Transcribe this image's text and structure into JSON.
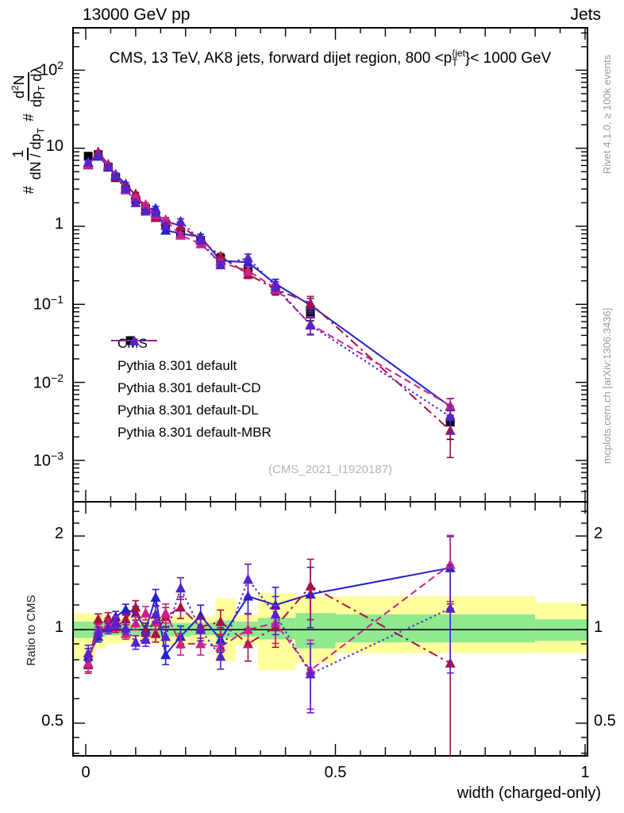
{
  "header": {
    "left": "13000 GeV pp",
    "right": "Jets"
  },
  "title": {
    "pre": "CMS, 13 TeV, AK8 jets, forward dijet region, 800 <p",
    "sup": "{jet",
    "sub": "T",
    "post": "}< 1000 GeV"
  },
  "ylabel": {
    "hash1": "#",
    "f1num": "1",
    "f1den": "dN / dp",
    "f1densub": "T",
    "hash2": "#",
    "f2numd": "d",
    "f2numsup": "2",
    "f2numN": "N",
    "f2den": "dp",
    "f2densub": "T",
    "f2dentail": " dλ"
  },
  "xlabel": "width (charged-only)",
  "ratio_label": "Ratio to CMS",
  "watermark": "(CMS_2021_I1920187)",
  "side_notes": {
    "top": "Rivet 4.1.0, ≥ 100k events",
    "bottom": "mcplots.cern.ch [arXiv:1306.3436]"
  },
  "legend": [
    {
      "label": "CMS",
      "color": "#000000",
      "style": "none",
      "marker": "square"
    },
    {
      "label": "Pythia 8.301 default",
      "color": "#2222cc",
      "style": "solid",
      "marker": "triangle"
    },
    {
      "label": "Pythia 8.301 default-CD",
      "color": "#aa1144",
      "style": "dashdot",
      "marker": "triangle"
    },
    {
      "label": "Pythia 8.301 default-DL",
      "color": "#cc2288",
      "style": "dashed",
      "marker": "triangle"
    },
    {
      "label": "Pythia 8.301 default-MBR",
      "color": "#5522cc",
      "style": "dotted",
      "marker": "triangle"
    }
  ],
  "colors": {
    "band_outer": "#ffff9c",
    "band_inner": "#8fe98f",
    "axis": "#000000"
  },
  "chart_data": {
    "type": "line",
    "title": "CMS, 13 TeV, AK8 jets, forward dijet region, 800 < pT{jet} < 1000 GeV",
    "xlabel": "width (charged-only)",
    "ylabel": "# 1/(dN/dpT) # d2N/(dpT dlambda)",
    "ratio_ylabel": "Ratio to CMS",
    "x_range": [
      0,
      1
    ],
    "y_range_main": [
      0.001,
      300
    ],
    "y_scale": "log",
    "y_range_ratio": [
      0.39,
      2.58
    ],
    "grid": false,
    "legend_position": "inside-left-middle",
    "x": [
      0.005,
      0.025,
      0.045,
      0.06,
      0.08,
      0.1,
      0.12,
      0.14,
      0.16,
      0.19,
      0.23,
      0.27,
      0.325,
      0.38,
      0.45,
      0.73
    ],
    "cms": {
      "name": "CMS",
      "color": "#000000",
      "marker": "square",
      "y": [
        7.9,
        8.3,
        5.7,
        4.2,
        3.0,
        2.2,
        1.68,
        1.33,
        1.07,
        0.85,
        0.66,
        0.39,
        0.27,
        0.153,
        0.075,
        0.0031
      ],
      "rel_err": [
        0.1,
        0.06,
        0.05,
        0.05,
        0.05,
        0.05,
        0.05,
        0.06,
        0.06,
        0.07,
        0.08,
        0.1,
        0.12,
        0.14,
        0.18,
        0.4
      ]
    },
    "series": [
      {
        "name": "Pythia 8.301 default",
        "color": "#2222cc",
        "style": "solid",
        "ratio": [
          0.82,
          0.95,
          1.03,
          1.1,
          1.16,
          1.13,
          1.0,
          1.27,
          0.83,
          0.95,
          1.11,
          0.93,
          1.28,
          1.2,
          1.3,
          1.58
        ],
        "rel_err": [
          0.06,
          0.04,
          0.04,
          0.04,
          0.04,
          0.05,
          0.05,
          0.06,
          0.07,
          0.08,
          0.08,
          0.09,
          0.12,
          0.14,
          0.22,
          0.26
        ]
      },
      {
        "name": "Pythia 8.301 default-CD",
        "color": "#aa1144",
        "style": "dashdot",
        "ratio": [
          0.77,
          1.08,
          1.09,
          1.02,
          1.08,
          1.18,
          0.98,
          0.97,
          1.1,
          1.18,
          1.02,
          1.06,
          0.9,
          1.02,
          1.38,
          0.78
        ],
        "rel_err": [
          0.06,
          0.04,
          0.04,
          0.04,
          0.04,
          0.05,
          0.05,
          0.06,
          0.07,
          0.08,
          0.08,
          0.09,
          0.12,
          0.14,
          0.22,
          0.55
        ]
      },
      {
        "name": "Pythia 8.301 default-DL",
        "color": "#cc2288",
        "style": "dashed",
        "ratio": [
          0.78,
          1.0,
          1.04,
          1.06,
          0.97,
          1.05,
          1.13,
          1.06,
          1.13,
          0.9,
          0.9,
          0.88,
          1.0,
          1.05,
          0.74,
          1.62
        ],
        "rel_err": [
          0.06,
          0.04,
          0.04,
          0.04,
          0.04,
          0.05,
          0.05,
          0.06,
          0.07,
          0.08,
          0.08,
          0.09,
          0.12,
          0.14,
          0.25,
          0.24
        ]
      },
      {
        "name": "Pythia 8.301 default-MBR",
        "color": "#5522cc",
        "style": "dotted",
        "ratio": [
          0.84,
          0.98,
          1.01,
          1.05,
          1.01,
          0.91,
          0.93,
          1.12,
          0.95,
          1.36,
          1.0,
          0.82,
          1.45,
          1.12,
          0.72,
          1.17
        ],
        "rel_err": [
          0.06,
          0.04,
          0.04,
          0.04,
          0.04,
          0.05,
          0.05,
          0.06,
          0.07,
          0.08,
          0.08,
          0.09,
          0.12,
          0.14,
          0.25,
          0.38
        ]
      }
    ],
    "ratio_bands": [
      {
        "x0": -0.025,
        "x1": 0.02,
        "yellow": [
          0.8,
          1.13
        ],
        "green": [
          0.94,
          1.06
        ]
      },
      {
        "x0": 0.02,
        "x1": 0.04,
        "yellow": [
          0.87,
          1.13
        ],
        "green": [
          0.95,
          1.06
        ]
      },
      {
        "x0": 0.04,
        "x1": 0.07,
        "yellow": [
          0.9,
          1.1
        ],
        "green": [
          0.96,
          1.05
        ]
      },
      {
        "x0": 0.07,
        "x1": 0.13,
        "yellow": [
          0.91,
          1.09
        ],
        "green": [
          0.96,
          1.04
        ]
      },
      {
        "x0": 0.13,
        "x1": 0.17,
        "yellow": [
          0.9,
          1.11
        ],
        "green": [
          0.95,
          1.05
        ]
      },
      {
        "x0": 0.17,
        "x1": 0.21,
        "yellow": [
          0.89,
          1.11
        ],
        "green": [
          0.95,
          1.05
        ]
      },
      {
        "x0": 0.21,
        "x1": 0.26,
        "yellow": [
          0.9,
          1.1
        ],
        "green": [
          0.96,
          1.05
        ]
      },
      {
        "x0": 0.26,
        "x1": 0.3,
        "yellow": [
          0.79,
          1.26
        ],
        "green": [
          0.94,
          1.07
        ]
      },
      {
        "x0": 0.3,
        "x1": 0.345,
        "yellow": [
          0.89,
          1.12
        ],
        "green": [
          0.95,
          1.06
        ]
      },
      {
        "x0": 0.345,
        "x1": 0.42,
        "yellow": [
          0.74,
          1.31
        ],
        "green": [
          0.93,
          1.09
        ]
      },
      {
        "x0": 0.42,
        "x1": 0.5,
        "yellow": [
          0.78,
          1.28
        ],
        "green": [
          0.87,
          1.13
        ]
      },
      {
        "x0": 0.5,
        "x1": 0.9,
        "yellow": [
          0.84,
          1.28
        ],
        "green": [
          0.91,
          1.12
        ]
      },
      {
        "x0": 0.9,
        "x1": 1.005,
        "yellow": [
          0.84,
          1.22
        ],
        "green": [
          0.92,
          1.08
        ]
      }
    ],
    "xticks": [
      {
        "v": 0,
        "t": "0"
      },
      {
        "v": 0.5,
        "t": "0.5"
      },
      {
        "v": 1,
        "t": "1"
      }
    ],
    "yticks_main": [
      {
        "v": 100,
        "base": "10",
        "exp": "2"
      },
      {
        "v": 10,
        "base": "10",
        "exp": ""
      },
      {
        "v": 1,
        "base": "1",
        "exp": ""
      },
      {
        "v": 0.1,
        "base": "10",
        "exp": "−1"
      },
      {
        "v": 0.01,
        "base": "10",
        "exp": "−2"
      },
      {
        "v": 0.001,
        "base": "10",
        "exp": "−3"
      }
    ],
    "yticks_ratio": [
      {
        "v": 2,
        "t": "2"
      },
      {
        "v": 1,
        "t": "1"
      },
      {
        "v": 0.5,
        "t": "0.5"
      }
    ]
  }
}
